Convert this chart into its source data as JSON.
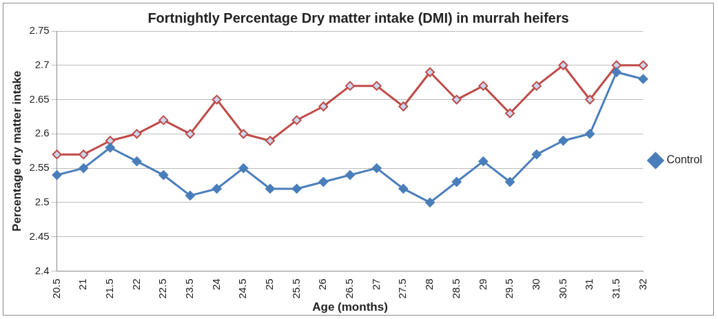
{
  "chart_data": {
    "type": "line",
    "title": "Fortnightly Percentage Dry matter intake (DMI) in murrah heifers",
    "xlabel": "Age (months)",
    "ylabel": "Percentage dry matter intake",
    "categories": [
      "20.5",
      "21",
      "21.5",
      "22",
      "22.5",
      "23.5",
      "24",
      "24.5",
      "25",
      "25.5",
      "26",
      "26.5",
      "27",
      "27.5",
      "28",
      "28.5",
      "29",
      "29.5",
      "30",
      "30.5",
      "31",
      "31.5",
      "32"
    ],
    "series": [
      {
        "name": "Control",
        "color": "#4a7ebb",
        "marker": "diamond",
        "values": [
          2.54,
          2.55,
          2.58,
          2.56,
          2.54,
          2.51,
          2.52,
          2.55,
          2.52,
          2.52,
          2.53,
          2.54,
          2.55,
          2.52,
          2.5,
          2.53,
          2.56,
          2.53,
          2.57,
          2.59,
          2.6,
          2.69,
          2.68
        ]
      },
      {
        "color": "#be4b48",
        "marker": "diamond",
        "values": [
          2.57,
          2.57,
          2.59,
          2.6,
          2.62,
          2.6,
          2.65,
          2.6,
          2.59,
          2.62,
          2.64,
          2.67,
          2.67,
          2.64,
          2.69,
          2.65,
          2.67,
          2.63,
          2.67,
          2.7,
          2.65,
          2.7,
          2.7
        ]
      }
    ],
    "ylim": [
      2.4,
      2.75
    ],
    "yticks": [
      2.4,
      2.45,
      2.5,
      2.55,
      2.6,
      2.65,
      2.7,
      2.75
    ],
    "grid": "y",
    "legend": "right",
    "line_style": "solid"
  }
}
